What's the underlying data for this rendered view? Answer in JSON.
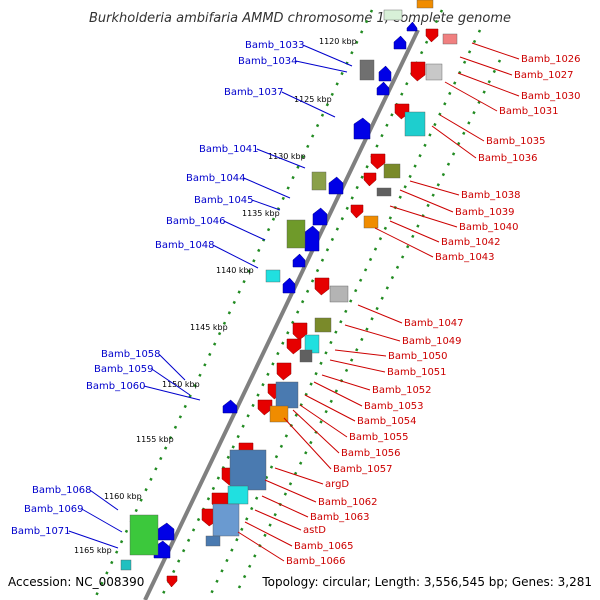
{
  "title": "Burkholderia ambifaria AMMD chromosome 1, complete genome",
  "footer": {
    "accession": "Accession: NC_008390",
    "topology": "Topology: circular; Length: 3,556,545 bp; Genes: 3,281"
  },
  "colors": {
    "forward_label": "#0000cc",
    "reverse_label": "#cc0000",
    "backbone": "#808080",
    "grid_dots": "#228b22"
  },
  "kbp_ticks": [
    "1120 kbp",
    "1125 kbp",
    "1130 kbp",
    "1135 kbp",
    "1140 kbp",
    "1145 kbp",
    "1150 kbp",
    "1155 kbp",
    "1160 kbp",
    "1165 kbp"
  ],
  "left_labels": [
    "Bamb_1033",
    "Bamb_1034",
    "Bamb_1037",
    "Bamb_1041",
    "Bamb_1044",
    "Bamb_1045",
    "Bamb_1046",
    "Bamb_1048",
    "Bamb_1058",
    "Bamb_1059",
    "Bamb_1060",
    "Bamb_1068",
    "Bamb_1069",
    "Bamb_1071"
  ],
  "right_labels": [
    "Bamb_1026",
    "Bamb_1027",
    "Bamb_1030",
    "Bamb_1031",
    "Bamb_1035",
    "Bamb_1036",
    "Bamb_1038",
    "Bamb_1039",
    "Bamb_1040",
    "Bamb_1042",
    "Bamb_1043",
    "Bamb_1047",
    "Bamb_1049",
    "Bamb_1050",
    "Bamb_1051",
    "Bamb_1052",
    "Bamb_1053",
    "Bamb_1054",
    "Bamb_1055",
    "Bamb_1056",
    "Bamb_1057",
    "argD",
    "Bamb_1062",
    "Bamb_1063",
    "astD",
    "Bamb_1065",
    "Bamb_1066"
  ]
}
